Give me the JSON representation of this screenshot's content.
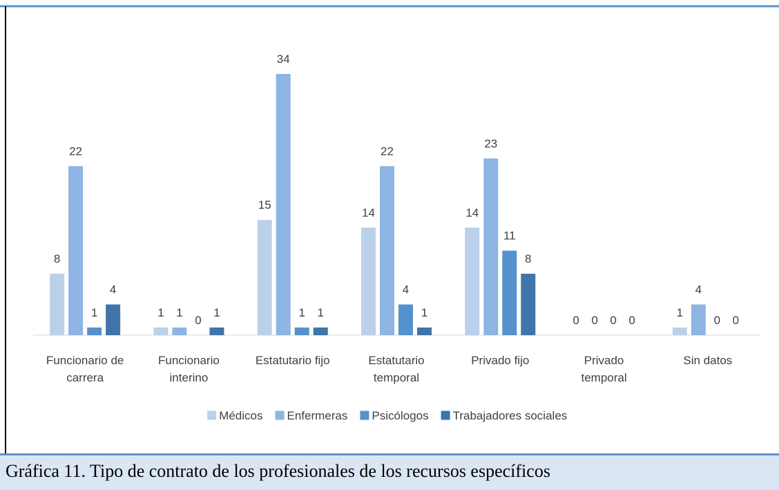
{
  "chart_data": {
    "type": "bar",
    "categories": [
      "Funcionario de\ncarrera",
      "Funcionario\ninterino",
      "Estatutario fijo",
      "Estatutario\ntemporal",
      "Privado fijo",
      "Privado\ntemporal",
      "Sin datos"
    ],
    "series": [
      {
        "name": "Médicos",
        "color": "#bcd0ea",
        "values": [
          8,
          1,
          15,
          14,
          14,
          0,
          1
        ]
      },
      {
        "name": "Enfermeras",
        "color": "#8eb4e3",
        "values": [
          22,
          1,
          34,
          22,
          23,
          0,
          4
        ]
      },
      {
        "name": "Psicólogos",
        "color": "#5591cc",
        "values": [
          1,
          0,
          1,
          4,
          11,
          0,
          0
        ]
      },
      {
        "name": "Trabajadores sociales",
        "color": "#3f75a8",
        "values": [
          4,
          1,
          1,
          1,
          8,
          0,
          0
        ]
      }
    ],
    "legend": "bottom"
  },
  "caption": "Gráfica 11. Tipo de contrato de los profesionales de los recursos específicos"
}
